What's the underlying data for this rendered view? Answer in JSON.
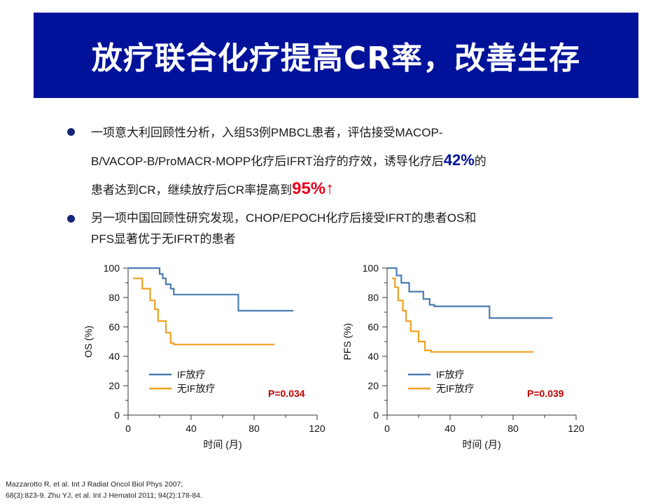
{
  "title": "放疗联合化疗提高CR率，改善生存",
  "bullets": [
    {
      "line1": "一项意大利回顾性分析，入组53例PMBCL患者，评估接受MACOP-",
      "line2_pre": "B/VACOP-B/ProMACR-MOPP化疗后IFRT治疗的疗效，诱导化疗后",
      "highlight1": "42%",
      "line2_post": "的",
      "line3_pre": "患者达到CR，继续放疗后CR率提高到",
      "highlight2": "95%",
      "arrow": "↑"
    },
    {
      "line1": "另一项中国回顾性研究发现，CHOP/EPOCH化疗后接受IFRT的患者OS和",
      "line2": "PFS显著优于无IFRT的患者"
    }
  ],
  "colors": {
    "title_bg": "#00129a",
    "highlight_blue": "#00129a",
    "highlight_red": "#e8001e",
    "if_series": "#4a7bb0",
    "no_if_series": "#f0a020",
    "p_value": "#c00000"
  },
  "citation": {
    "line1": "Mazzarotto R, et al. Int J Radiat Oncol Biol Phys 2007;",
    "line2": "68(3):823-9. Zhu YJ, et al. Int J Hematol 2011; 94(2):178-84."
  },
  "chart_data": [
    {
      "type": "line",
      "step": true,
      "xlabel": "时间 (月)",
      "ylabel": "OS (%)",
      "xlim": [
        0,
        120
      ],
      "ylim": [
        0,
        100
      ],
      "xticks": [
        "0",
        "40",
        "80",
        "120"
      ],
      "yticks": [
        "0",
        "20",
        "40",
        "60",
        "80",
        "100"
      ],
      "p_value": "P=0.034",
      "legend_position": "bottom-left",
      "series": [
        {
          "name": "IF放疗",
          "color": "#4a7bb0",
          "points": [
            [
              0,
              100
            ],
            [
              20,
              100
            ],
            [
              20,
              96
            ],
            [
              22,
              96
            ],
            [
              22,
              93
            ],
            [
              24,
              93
            ],
            [
              24,
              89
            ],
            [
              27,
              89
            ],
            [
              27,
              86
            ],
            [
              29,
              86
            ],
            [
              29,
              82
            ],
            [
              70,
              82
            ],
            [
              70,
              71
            ],
            [
              105,
              71
            ]
          ]
        },
        {
          "name": "无IF放疗",
          "color": "#f0a020",
          "points": [
            [
              3,
              93
            ],
            [
              9,
              93
            ],
            [
              9,
              86
            ],
            [
              14,
              86
            ],
            [
              14,
              78
            ],
            [
              17,
              78
            ],
            [
              17,
              72
            ],
            [
              19,
              72
            ],
            [
              19,
              64
            ],
            [
              24,
              64
            ],
            [
              24,
              56
            ],
            [
              27,
              56
            ],
            [
              27,
              49
            ],
            [
              29,
              49
            ],
            [
              29,
              48
            ],
            [
              93,
              48
            ]
          ]
        }
      ]
    },
    {
      "type": "line",
      "step": true,
      "xlabel": "时间 (月)",
      "ylabel": "PFS (%)",
      "xlim": [
        0,
        120
      ],
      "ylim": [
        0,
        100
      ],
      "xticks": [
        "0",
        "40",
        "80",
        "120"
      ],
      "yticks": [
        "0",
        "20",
        "40",
        "60",
        "80",
        "100"
      ],
      "p_value": "P=0.039",
      "legend_position": "bottom-left",
      "series": [
        {
          "name": "IF放疗",
          "color": "#4a7bb0",
          "points": [
            [
              0,
              100
            ],
            [
              6,
              100
            ],
            [
              6,
              95
            ],
            [
              9,
              95
            ],
            [
              9,
              90
            ],
            [
              14,
              90
            ],
            [
              14,
              84
            ],
            [
              23,
              84
            ],
            [
              23,
              79
            ],
            [
              27,
              79
            ],
            [
              27,
              75
            ],
            [
              30,
              75
            ],
            [
              30,
              74
            ],
            [
              65,
              74
            ],
            [
              65,
              66
            ],
            [
              105,
              66
            ]
          ]
        },
        {
          "name": "无IF放疗",
          "color": "#f0a020",
          "points": [
            [
              3,
              93
            ],
            [
              5,
              93
            ],
            [
              5,
              87
            ],
            [
              7,
              87
            ],
            [
              7,
              78
            ],
            [
              10,
              78
            ],
            [
              10,
              71
            ],
            [
              12,
              71
            ],
            [
              12,
              64
            ],
            [
              15,
              64
            ],
            [
              15,
              57
            ],
            [
              20,
              57
            ],
            [
              20,
              50
            ],
            [
              24,
              50
            ],
            [
              24,
              44
            ],
            [
              28,
              44
            ],
            [
              28,
              43
            ],
            [
              93,
              43
            ]
          ]
        }
      ]
    }
  ]
}
